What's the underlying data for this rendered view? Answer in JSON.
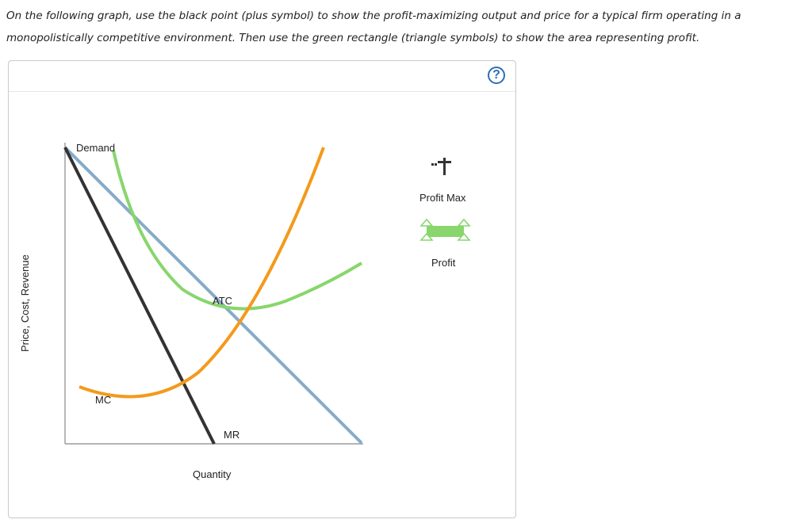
{
  "instructions": "On the following graph, use the black point (plus symbol) to show the profit-maximizing output and price for a typical firm operating in a monopolistically competitive environment. Then use the green rectangle (triangle symbols) to show the area representing profit.",
  "help": {
    "glyph": "?",
    "icon": "question-circle-icon",
    "color": "#2c6fb6"
  },
  "graph": {
    "ylabel": "Price, Cost, Revenue",
    "xlabel": "Quantity",
    "curves": [
      {
        "name": "Demand",
        "color": "#86abc9"
      },
      {
        "name": "MR",
        "color": "#333333"
      },
      {
        "name": "ATC",
        "color": "#88d66c"
      },
      {
        "name": "MC",
        "color": "#f39a1b"
      }
    ]
  },
  "tools": [
    {
      "label": "Profit Max",
      "icon": "plus-point-icon",
      "color": "#333333"
    },
    {
      "label": "Profit",
      "icon": "green-rectangle-icon",
      "color": "#88d66c"
    }
  ]
}
